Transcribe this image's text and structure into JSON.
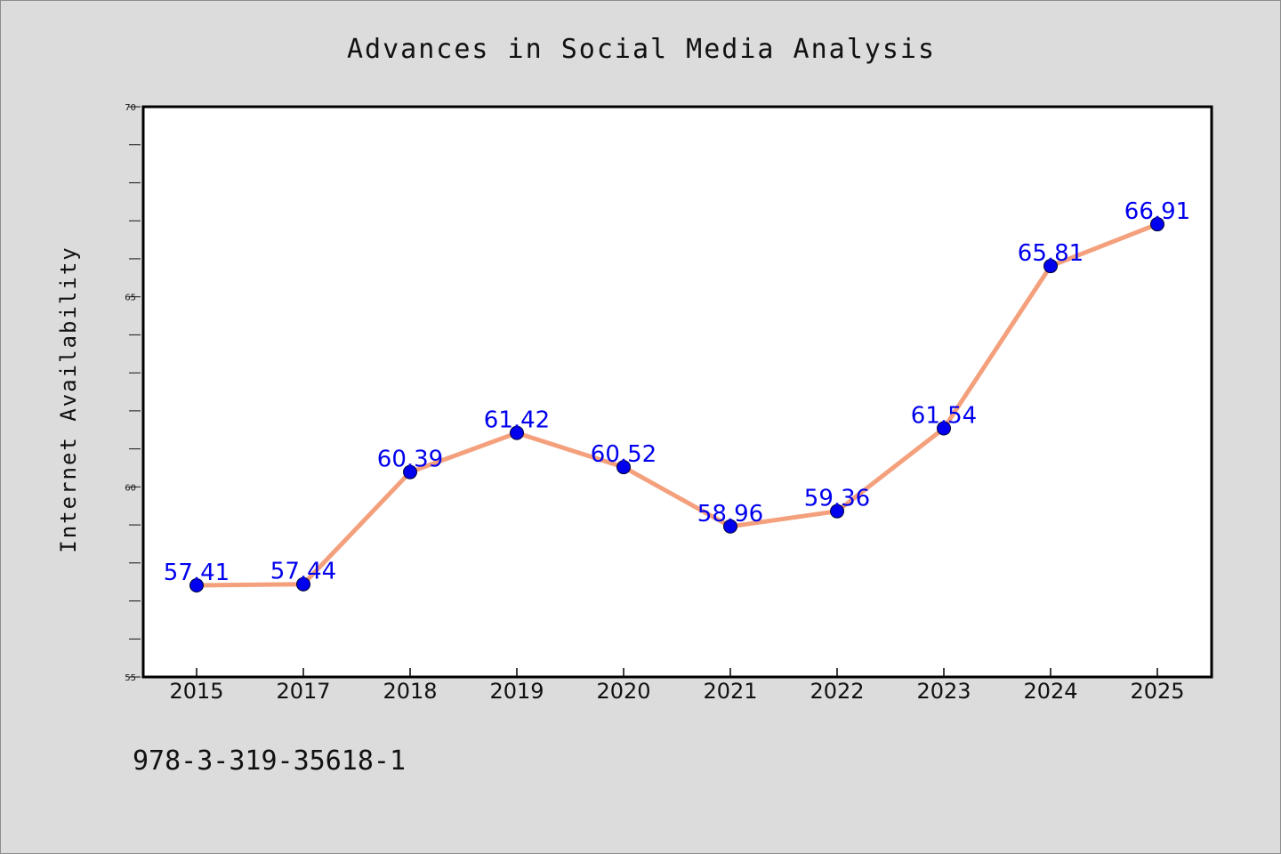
{
  "chart_data": {
    "type": "line",
    "title": "Advances in Social Media Analysis",
    "xlabel": "",
    "ylabel": "Internet Availability",
    "categories": [
      "2015",
      "2017",
      "2018",
      "2019",
      "2020",
      "2021",
      "2022",
      "2023",
      "2024",
      "2025"
    ],
    "series": [
      {
        "values": [
          57.41,
          57.44,
          60.39,
          61.42,
          60.52,
          58.96,
          59.36,
          61.54,
          65.81,
          66.91
        ]
      }
    ],
    "data_labels": [
      "57.41",
      "57.44",
      "60.39",
      "61.42",
      "60.52",
      "58.96",
      "59.36",
      "61.54",
      "65.81",
      "66.91"
    ],
    "ylim": [
      55,
      70
    ],
    "yticks": [
      "55",
      "60",
      "65",
      "70"
    ],
    "grid": false,
    "legend": "none",
    "colors": {
      "line": "#f4a07c",
      "marker": "#0000ee",
      "label": "#0000ee",
      "background": "#dcdcdc",
      "plot_background": "#ffffff"
    }
  },
  "footer": {
    "isbn": "978-3-319-35618-1"
  }
}
